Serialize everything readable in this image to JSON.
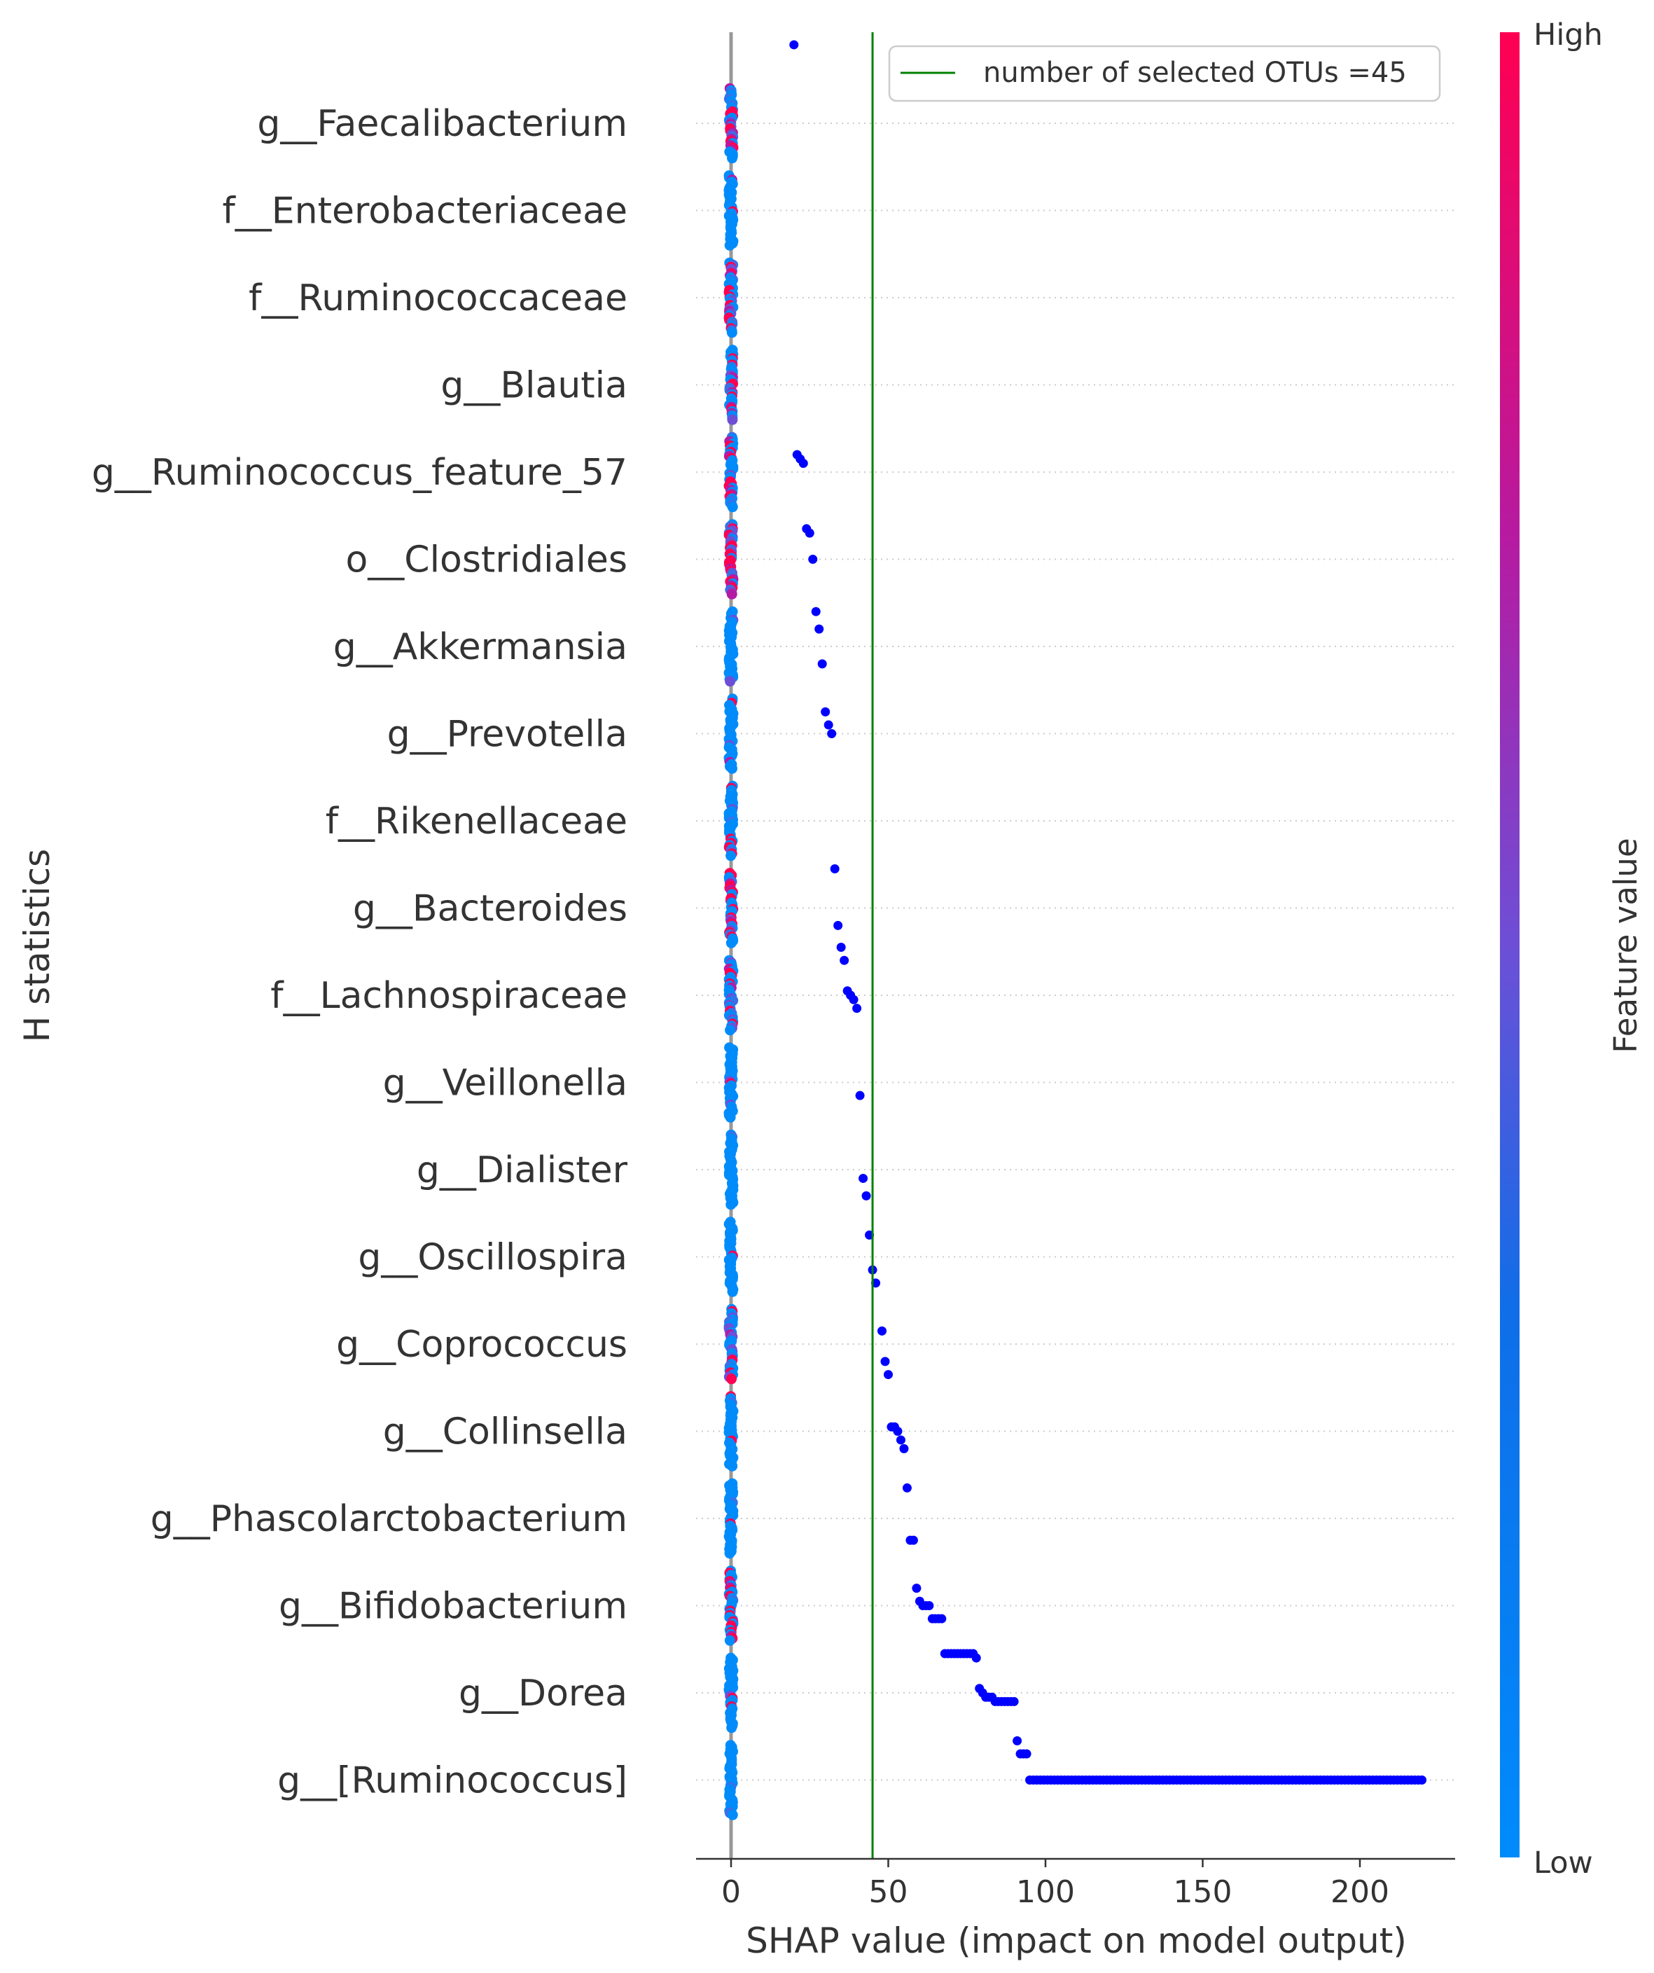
{
  "chart_data": {
    "type": "scatter",
    "subtype": "shap-summary-beeswarm",
    "xlabel": "SHAP value (impact on model output)",
    "ylabel": "H statistics",
    "xlim": [
      -11,
      231
    ],
    "xticks": [
      0,
      50,
      100,
      150,
      200
    ],
    "grid": "dotted horizontal rows",
    "features": [
      "g__Faecalibacterium",
      "f__Enterobacteriaceae",
      "f__Ruminococcaceae",
      "g__Blautia",
      "g__Ruminococcus_feature_57",
      "o__Clostridiales",
      "g__Akkermansia",
      "g__Prevotella",
      "f__Rikenellaceae",
      "g__Bacteroides",
      "f__Lachnospiraceae",
      "g__Veillonella",
      "g__Dialister",
      "g__Oscillospira",
      "g__Coprococcus",
      "g__Collinsella",
      "g__Phascolarctobacterium",
      "g__Bifidobacterium",
      "g__Dorea",
      "g__[Ruminococcus]"
    ],
    "feature_clusters": [
      {
        "feature": "g__Faecalibacterium",
        "x": 0,
        "spread": 0.4,
        "high_share": 0.55
      },
      {
        "feature": "f__Enterobacteriaceae",
        "x": 0,
        "spread": 0.4,
        "high_share": 0.1
      },
      {
        "feature": "f__Ruminococcaceae",
        "x": 0,
        "spread": 0.4,
        "high_share": 0.6
      },
      {
        "feature": "g__Blautia",
        "x": 0,
        "spread": 0.4,
        "high_share": 0.35
      },
      {
        "feature": "g__Ruminococcus_feature_57",
        "x": 0,
        "spread": 0.4,
        "high_share": 0.45
      },
      {
        "feature": "o__Clostridiales",
        "x": 0,
        "spread": 0.4,
        "high_share": 0.8
      },
      {
        "feature": "g__Akkermansia",
        "x": 0,
        "spread": 0.4,
        "high_share": 0.05
      },
      {
        "feature": "g__Prevotella",
        "x": 0,
        "spread": 0.4,
        "high_share": 0.1
      },
      {
        "feature": "f__Rikenellaceae",
        "x": 0,
        "spread": 0.4,
        "high_share": 0.2
      },
      {
        "feature": "g__Bacteroides",
        "x": 0,
        "spread": 0.4,
        "high_share": 0.65
      },
      {
        "feature": "f__Lachnospiraceae",
        "x": 0,
        "spread": 0.4,
        "high_share": 0.45
      },
      {
        "feature": "g__Veillonella",
        "x": 0,
        "spread": 0.4,
        "high_share": 0.08
      },
      {
        "feature": "g__Dialister",
        "x": 0,
        "spread": 0.4,
        "high_share": 0.02
      },
      {
        "feature": "g__Oscillospira",
        "x": 0,
        "spread": 0.4,
        "high_share": 0.02
      },
      {
        "feature": "g__Coprococcus",
        "x": 0,
        "spread": 0.4,
        "high_share": 0.55
      },
      {
        "feature": "g__Collinsella",
        "x": 0,
        "spread": 0.4,
        "high_share": 0.02
      },
      {
        "feature": "g__Phascolarctobacterium",
        "x": 0,
        "spread": 0.4,
        "high_share": 0.02
      },
      {
        "feature": "g__Bifidobacterium",
        "x": 0,
        "spread": 0.4,
        "high_share": 0.4
      },
      {
        "feature": "g__Dorea",
        "x": 0,
        "spread": 0.4,
        "high_share": 0.12
      },
      {
        "feature": "g__[Ruminococcus]",
        "x": 0,
        "spread": 0.4,
        "high_share": 0.15
      }
    ],
    "selection_curve": [
      [
        20,
        -0.9
      ],
      [
        21,
        3.8
      ],
      [
        22,
        3.85
      ],
      [
        23,
        3.9
      ],
      [
        24,
        4.65
      ],
      [
        25,
        4.7
      ],
      [
        26,
        5.0
      ],
      [
        27,
        5.6
      ],
      [
        28,
        5.8
      ],
      [
        29,
        6.2
      ],
      [
        30,
        6.75
      ],
      [
        31,
        6.9
      ],
      [
        32,
        7.0
      ],
      [
        33,
        8.55
      ],
      [
        34,
        9.2
      ],
      [
        35,
        9.45
      ],
      [
        36,
        9.6
      ],
      [
        37,
        9.95
      ],
      [
        38,
        10.0
      ],
      [
        39,
        10.05
      ],
      [
        40,
        10.15
      ],
      [
        41,
        11.15
      ],
      [
        42,
        12.1
      ],
      [
        43,
        12.3
      ],
      [
        44,
        12.75
      ],
      [
        45,
        13.15
      ],
      [
        46,
        13.3
      ],
      [
        48,
        13.85
      ],
      [
        49,
        14.2
      ],
      [
        50,
        14.35
      ],
      [
        51,
        14.95
      ],
      [
        52,
        14.95
      ],
      [
        53,
        15.0
      ],
      [
        54,
        15.1
      ],
      [
        55,
        15.2
      ],
      [
        56,
        15.65
      ],
      [
        57,
        16.25
      ],
      [
        58,
        16.25
      ],
      [
        59,
        16.8
      ],
      [
        60,
        16.95
      ],
      [
        61,
        17.0
      ],
      [
        62,
        17.0
      ],
      [
        63,
        17.0
      ],
      [
        64,
        17.15
      ],
      [
        65,
        17.15
      ],
      [
        66,
        17.15
      ],
      [
        67,
        17.15
      ],
      [
        68,
        17.55
      ],
      [
        69,
        17.55
      ],
      [
        70,
        17.55
      ],
      [
        71,
        17.55
      ],
      [
        72,
        17.55
      ],
      [
        73,
        17.55
      ],
      [
        74,
        17.55
      ],
      [
        75,
        17.55
      ],
      [
        76,
        17.55
      ],
      [
        77,
        17.55
      ],
      [
        78,
        17.6
      ],
      [
        79,
        17.95
      ],
      [
        80,
        18.0
      ],
      [
        81,
        18.05
      ],
      [
        82,
        18.05
      ],
      [
        83,
        18.05
      ],
      [
        84,
        18.1
      ],
      [
        85,
        18.1
      ],
      [
        86,
        18.1
      ],
      [
        87,
        18.1
      ],
      [
        88,
        18.1
      ],
      [
        89,
        18.1
      ],
      [
        90,
        18.1
      ],
      [
        91,
        18.55
      ],
      [
        92,
        18.7
      ],
      [
        93,
        18.7
      ],
      [
        94,
        18.7
      ],
      [
        95,
        19.0
      ],
      [
        220,
        19.0
      ]
    ],
    "selection_point_color": "#0000ff",
    "vertical_line": {
      "x": 45,
      "color": "#008000"
    },
    "legend": {
      "label": "number of selected OTUs =45",
      "placement": "upper right"
    },
    "colorbar": {
      "label": "Feature value",
      "high": "High",
      "low": "Low",
      "colors": [
        "#008bfb",
        "#ff0052"
      ]
    }
  }
}
